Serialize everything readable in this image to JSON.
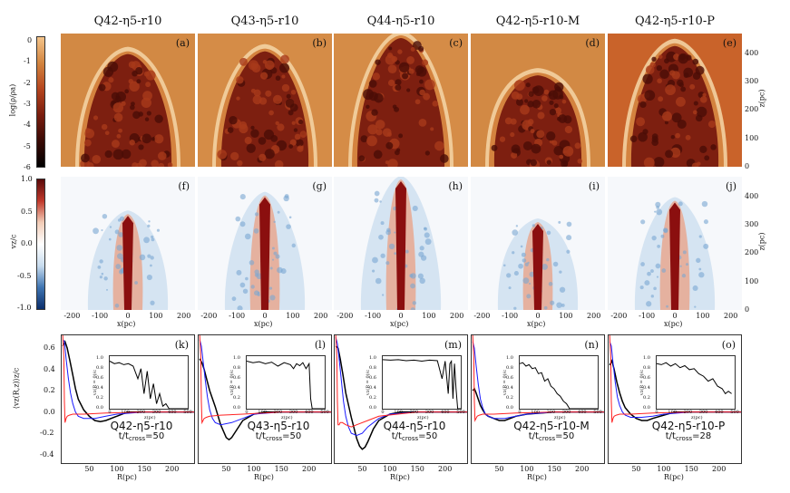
{
  "columns": [
    {
      "title": "Q42-η5-r10",
      "labels": [
        "(a)",
        "(f)",
        "(k)"
      ],
      "ann_title": "Q42-η5-r10",
      "ann_t": "t/t",
      "ann_sub": "cross",
      "ann_val": "=50",
      "rho_bg": "#d28944",
      "rho_tip": 0.14,
      "v_tip": 0.28
    },
    {
      "title": "Q43-η5-r10",
      "labels": [
        "(b)",
        "(g)",
        "(l)"
      ],
      "ann_title": "Q43-η5-r10",
      "ann_t": "t/t",
      "ann_sub": "cross",
      "ann_val": "=50",
      "rho_bg": "#d58c47",
      "rho_tip": 0.12,
      "v_tip": 0.14
    },
    {
      "title": "Q44-η5-r10",
      "labels": [
        "(c)",
        "(h)",
        "(m)"
      ],
      "ann_title": "Q44-η5-r10",
      "ann_t": "t/t",
      "ann_sub": "cross",
      "ann_val": "=50",
      "rho_bg": "#d58c47",
      "rho_tip": 0.02,
      "v_tip": 0.02
    },
    {
      "title": "Q42-η5-r10-M",
      "labels": [
        "(d)",
        "(i)",
        "(n)"
      ],
      "ann_title": "Q42-η5-r10-M",
      "ann_t": "t/t",
      "ann_sub": "cross",
      "ann_val": "=50",
      "rho_bg": "#d28944",
      "rho_tip": 0.3,
      "v_tip": 0.34
    },
    {
      "title": "Q42-η5-r10-P",
      "labels": [
        "(e)",
        "(j)",
        "(o)"
      ],
      "ann_title": "Q42-η5-r10-P",
      "ann_t": "t/t",
      "ann_sub": "cross",
      "ann_val": "=28",
      "rho_bg": "#c9632a",
      "rho_tip": 0.08,
      "v_tip": 0.18
    }
  ],
  "rho_colorbar": {
    "label": "log(ρ/ρa)",
    "ticks": [
      "0",
      "-1",
      "-2",
      "-3",
      "-4",
      "-5",
      "-6"
    ],
    "colors": [
      "#f4c48a",
      "#d2843f",
      "#b5451e",
      "#7a1d0e",
      "#3a0a05",
      "#000000"
    ]
  },
  "v_colorbar": {
    "label": "vz/c",
    "ticks": [
      "1.0",
      "0.5",
      "0.0",
      "-0.5",
      "-1.0"
    ],
    "colors": [
      "#5a0a0a",
      "#c0392b",
      "#f2cdb8",
      "#ffffff",
      "#c8dcee",
      "#3f75b2",
      "#0b2e6b"
    ]
  },
  "z_axis": {
    "label": "z(pc)",
    "ticks": [
      "400",
      "300",
      "200",
      "100",
      "0"
    ]
  },
  "x_axis": {
    "label": "x(pc)",
    "ticks": [
      "-200",
      "-100",
      "0",
      "100",
      "200"
    ]
  },
  "profile_axes": {
    "ylabel": "⟨vz(R,z)⟩z/c",
    "xlabel": "R(pc)",
    "yticks": [
      "0.6",
      "0.4",
      "0.2",
      "0.0",
      "-0.2",
      "-0.4"
    ],
    "xticks": [
      "50",
      "100",
      "150",
      "200"
    ]
  },
  "inset_axes": {
    "ylabel": "vz(R = 0)/c",
    "xlabel": "z(pc)",
    "yticks": [
      "1.0",
      "0.8",
      "0.6",
      "0.4",
      "0.2",
      "0.0"
    ],
    "xticks": [
      "0",
      "100",
      "200",
      "300",
      "400",
      "500"
    ]
  },
  "chart_data": [
    {
      "type": "line",
      "title": "",
      "xlabel": "R(pc)",
      "ylabel": "⟨vz(R,z)⟩z/c",
      "xlim": [
        0,
        240
      ],
      "ylim": [
        -0.48,
        0.72
      ],
      "series": [
        {
          "color": "#000000",
          "x": [
            2,
            6,
            10,
            15,
            20,
            25,
            30,
            40,
            50,
            60,
            70,
            80,
            100,
            120,
            150,
            200,
            240
          ],
          "y": [
            0.62,
            0.66,
            0.6,
            0.48,
            0.35,
            0.22,
            0.12,
            0.02,
            -0.04,
            -0.08,
            -0.09,
            -0.08,
            -0.04,
            0,
            0,
            0,
            0
          ]
        },
        {
          "color": "#1a1aff",
          "x": [
            2,
            5,
            8,
            12,
            16,
            20,
            25,
            30,
            40,
            60,
            80,
            100,
            150,
            240
          ],
          "y": [
            0.68,
            0.66,
            0.5,
            0.32,
            0.18,
            0.08,
            0,
            -0.04,
            -0.06,
            -0.06,
            -0.04,
            -0.02,
            0,
            0
          ]
        },
        {
          "color": "#ff2222",
          "x": [
            2,
            4,
            5,
            6,
            8,
            10,
            14,
            20,
            40,
            80,
            150,
            240
          ],
          "y": [
            0.72,
            0.5,
            0.1,
            -0.1,
            -0.06,
            -0.04,
            -0.03,
            -0.02,
            -0.02,
            -0.01,
            0,
            0
          ]
        }
      ]
    },
    {
      "type": "line",
      "title": "",
      "xlabel": "R(pc)",
      "ylabel": "⟨vz(R,z)⟩z/c",
      "xlim": [
        0,
        240
      ],
      "ylim": [
        -0.48,
        0.72
      ],
      "series": [
        {
          "color": "#000000",
          "x": [
            2,
            6,
            10,
            15,
            20,
            30,
            40,
            50,
            55,
            60,
            70,
            80,
            100,
            120,
            150,
            240
          ],
          "y": [
            0.5,
            0.46,
            0.4,
            0.3,
            0.2,
            0.05,
            -0.12,
            -0.24,
            -0.26,
            -0.24,
            -0.16,
            -0.08,
            -0.02,
            0,
            0,
            0
          ]
        },
        {
          "color": "#1a1aff",
          "x": [
            2,
            5,
            8,
            12,
            16,
            20,
            25,
            30,
            40,
            60,
            80,
            100,
            150,
            240
          ],
          "y": [
            0.68,
            0.62,
            0.48,
            0.3,
            0.14,
            0.02,
            -0.06,
            -0.1,
            -0.12,
            -0.1,
            -0.06,
            -0.02,
            0,
            0
          ]
        },
        {
          "color": "#ff2222",
          "x": [
            2,
            4,
            5,
            6,
            8,
            10,
            14,
            20,
            40,
            80,
            150,
            240
          ],
          "y": [
            0.72,
            0.5,
            0.1,
            -0.1,
            -0.08,
            -0.06,
            -0.05,
            -0.04,
            -0.03,
            -0.02,
            0,
            0
          ]
        }
      ]
    },
    {
      "type": "line",
      "title": "",
      "xlabel": "R(pc)",
      "ylabel": "⟨vz(R,z)⟩z/c",
      "xlim": [
        0,
        240
      ],
      "ylim": [
        -0.48,
        0.72
      ],
      "series": [
        {
          "color": "#000000",
          "x": [
            2,
            6,
            10,
            15,
            20,
            30,
            40,
            45,
            50,
            55,
            60,
            70,
            80,
            100,
            120,
            150,
            240
          ],
          "y": [
            0.62,
            0.6,
            0.5,
            0.35,
            0.18,
            -0.05,
            -0.25,
            -0.32,
            -0.35,
            -0.33,
            -0.28,
            -0.16,
            -0.08,
            -0.02,
            0,
            0,
            0
          ]
        },
        {
          "color": "#1a1aff",
          "x": [
            2,
            5,
            8,
            12,
            16,
            20,
            25,
            30,
            40,
            50,
            60,
            80,
            100,
            150,
            240
          ],
          "y": [
            0.7,
            0.64,
            0.5,
            0.3,
            0.1,
            -0.04,
            -0.14,
            -0.2,
            -0.22,
            -0.2,
            -0.14,
            -0.06,
            -0.02,
            0,
            0
          ]
        },
        {
          "color": "#ff2222",
          "x": [
            2,
            4,
            5,
            6,
            8,
            10,
            14,
            20,
            30,
            40,
            60,
            80,
            150,
            240
          ],
          "y": [
            0.72,
            0.5,
            0.1,
            -0.12,
            -0.12,
            -0.1,
            -0.1,
            -0.12,
            -0.14,
            -0.12,
            -0.08,
            -0.04,
            0,
            0
          ]
        }
      ]
    },
    {
      "type": "line",
      "title": "",
      "xlabel": "R(pc)",
      "ylabel": "⟨vz(R,z)⟩z/c",
      "xlim": [
        0,
        240
      ],
      "ylim": [
        -0.48,
        0.72
      ],
      "series": [
        {
          "color": "#000000",
          "x": [
            2,
            5,
            8,
            12,
            16,
            20,
            25,
            30,
            40,
            50,
            60,
            70,
            80,
            100,
            150,
            240
          ],
          "y": [
            0.2,
            0.22,
            0.18,
            0.12,
            0.06,
            0.02,
            -0.02,
            -0.04,
            -0.06,
            -0.08,
            -0.08,
            -0.06,
            -0.04,
            -0.02,
            0,
            0
          ]
        },
        {
          "color": "#1a1aff",
          "x": [
            2,
            5,
            8,
            12,
            16,
            20,
            25,
            30,
            40,
            60,
            80,
            100,
            150,
            240
          ],
          "y": [
            0.66,
            0.6,
            0.44,
            0.26,
            0.12,
            0.04,
            -0.02,
            -0.04,
            -0.06,
            -0.06,
            -0.04,
            -0.02,
            0,
            0
          ]
        },
        {
          "color": "#ff2222",
          "x": [
            2,
            4,
            5,
            6,
            8,
            10,
            14,
            20,
            40,
            80,
            150,
            240
          ],
          "y": [
            0.72,
            0.5,
            0.1,
            -0.08,
            -0.06,
            -0.04,
            -0.03,
            -0.02,
            -0.02,
            -0.01,
            0,
            0
          ]
        }
      ]
    },
    {
      "type": "line",
      "title": "",
      "xlabel": "R(pc)",
      "ylabel": "⟨vz(R,z)⟩z/c",
      "xlim": [
        0,
        240
      ],
      "ylim": [
        -0.48,
        0.72
      ],
      "series": [
        {
          "color": "#000000",
          "x": [
            2,
            6,
            10,
            15,
            20,
            25,
            30,
            40,
            50,
            60,
            70,
            80,
            100,
            120,
            150,
            240
          ],
          "y": [
            0.44,
            0.48,
            0.4,
            0.28,
            0.18,
            0.1,
            0.04,
            -0.02,
            -0.06,
            -0.08,
            -0.08,
            -0.06,
            -0.03,
            0,
            0,
            0
          ]
        },
        {
          "color": "#1a1aff",
          "x": [
            2,
            5,
            8,
            12,
            16,
            20,
            25,
            30,
            40,
            60,
            80,
            100,
            150,
            240
          ],
          "y": [
            0.66,
            0.62,
            0.46,
            0.28,
            0.14,
            0.06,
            0,
            -0.03,
            -0.05,
            -0.05,
            -0.04,
            -0.02,
            0,
            0
          ]
        },
        {
          "color": "#ff2222",
          "x": [
            2,
            4,
            5,
            6,
            8,
            10,
            14,
            20,
            40,
            80,
            150,
            240
          ],
          "y": [
            0.72,
            0.5,
            0.1,
            -0.1,
            -0.06,
            -0.04,
            -0.03,
            -0.02,
            -0.02,
            -0.01,
            0,
            0
          ]
        }
      ]
    }
  ],
  "insets": [
    {
      "type": "line",
      "xlim": [
        0,
        500
      ],
      "ylim": [
        0,
        1.05
      ],
      "x": [
        0,
        30,
        60,
        90,
        120,
        150,
        180,
        200,
        220,
        240,
        260,
        280,
        300,
        320,
        340,
        360,
        380,
        400,
        500
      ],
      "y": [
        0.95,
        0.9,
        0.92,
        0.88,
        0.9,
        0.85,
        0.6,
        0.8,
        0.3,
        0.75,
        0.2,
        0.5,
        0.1,
        0.3,
        0.05,
        0.1,
        0,
        0,
        0
      ]
    },
    {
      "type": "line",
      "xlim": [
        0,
        500
      ],
      "ylim": [
        0,
        1.05
      ],
      "x": [
        0,
        40,
        80,
        120,
        160,
        200,
        240,
        280,
        300,
        320,
        340,
        360,
        380,
        400,
        410,
        420,
        500
      ],
      "y": [
        0.95,
        0.92,
        0.94,
        0.9,
        0.93,
        0.85,
        0.92,
        0.88,
        0.8,
        0.9,
        0.86,
        0.92,
        0.8,
        0.9,
        0.2,
        0,
        0
      ]
    },
    {
      "type": "line",
      "xlim": [
        0,
        500
      ],
      "ylim": [
        0,
        1.05
      ],
      "x": [
        0,
        50,
        100,
        150,
        200,
        250,
        300,
        350,
        380,
        400,
        420,
        430,
        440,
        450,
        460,
        470,
        480,
        500
      ],
      "y": [
        0.98,
        0.97,
        0.98,
        0.96,
        0.97,
        0.95,
        0.97,
        0.96,
        0.6,
        0.95,
        0.3,
        0.9,
        0.95,
        0.2,
        0.9,
        0.4,
        0,
        0
      ]
    },
    {
      "type": "line",
      "xlim": [
        0,
        500
      ],
      "ylim": [
        0,
        1.05
      ],
      "x": [
        0,
        20,
        40,
        60,
        80,
        100,
        120,
        140,
        160,
        180,
        200,
        220,
        240,
        260,
        280,
        300,
        320,
        340,
        500
      ],
      "y": [
        0.9,
        0.92,
        0.85,
        0.88,
        0.8,
        0.82,
        0.7,
        0.72,
        0.55,
        0.6,
        0.45,
        0.4,
        0.3,
        0.25,
        0.15,
        0.1,
        0,
        0,
        0
      ]
    },
    {
      "type": "line",
      "xlim": [
        0,
        500
      ],
      "ylim": [
        0,
        1.05
      ],
      "x": [
        0,
        30,
        60,
        90,
        120,
        150,
        180,
        210,
        240,
        270,
        300,
        330,
        360,
        390,
        420,
        440,
        460,
        480
      ],
      "y": [
        0.9,
        0.88,
        0.92,
        0.85,
        0.9,
        0.82,
        0.86,
        0.78,
        0.8,
        0.7,
        0.65,
        0.55,
        0.6,
        0.45,
        0.4,
        0.3,
        0.35,
        0.3
      ]
    }
  ]
}
